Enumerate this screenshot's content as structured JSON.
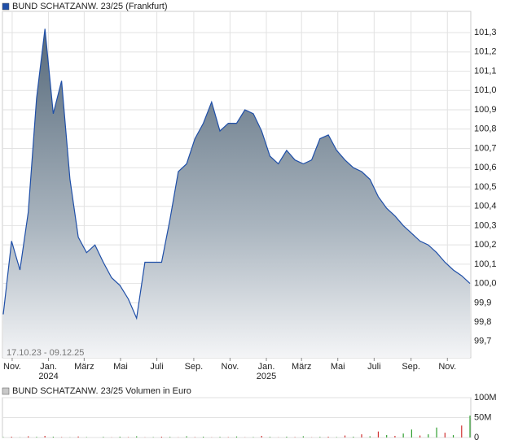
{
  "chart_data": [
    {
      "type": "area",
      "title": "BUND SCHATZANW. 23/25 (Frankfurt)",
      "legend_color": "#1f4fa8",
      "date_range": "17.10.23 - 09.12.25",
      "values": [
        99.84,
        100.22,
        100.07,
        100.37,
        100.96,
        101.32,
        100.88,
        101.05,
        100.54,
        100.24,
        100.16,
        100.2,
        100.11,
        100.03,
        99.99,
        99.92,
        99.82,
        100.11,
        100.11,
        100.11,
        100.33,
        100.58,
        100.62,
        100.75,
        100.83,
        100.94,
        100.79,
        100.83,
        100.83,
        100.9,
        100.88,
        100.79,
        100.66,
        100.62,
        100.69,
        100.64,
        100.62,
        100.64,
        100.75,
        100.77,
        100.69,
        100.64,
        100.6,
        100.58,
        100.54,
        100.45,
        100.39,
        100.35,
        100.3,
        100.26,
        100.22,
        100.2,
        100.16,
        100.11,
        100.07,
        100.04,
        100.0
      ],
      "color": "#1f4fa8",
      "grid": true,
      "xlim": [
        0,
        56
      ],
      "xticks": [
        {
          "value": 1.07,
          "label": "Nov."
        },
        {
          "value": 5.43,
          "label": "Jan.",
          "year": "2024"
        },
        {
          "value": 9.71,
          "label": "März"
        },
        {
          "value": 14.07,
          "label": "Mai"
        },
        {
          "value": 18.43,
          "label": "Juli"
        },
        {
          "value": 22.86,
          "label": "Sep."
        },
        {
          "value": 27.21,
          "label": "Nov."
        },
        {
          "value": 31.57,
          "label": "Jan.",
          "year": "2025"
        },
        {
          "value": 35.79,
          "label": "März"
        },
        {
          "value": 40.14,
          "label": "Mai"
        },
        {
          "value": 44.5,
          "label": "Juli"
        },
        {
          "value": 48.93,
          "label": "Sep."
        },
        {
          "value": 53.29,
          "label": "Nov."
        }
      ],
      "ylim": [
        99.615,
        101.41
      ],
      "yticks": [
        {
          "value": 99.7,
          "label": "99,7"
        },
        {
          "value": 99.8,
          "label": "99,8"
        },
        {
          "value": 99.9,
          "label": "99,9"
        },
        {
          "value": 100.0,
          "label": "100,0"
        },
        {
          "value": 100.1,
          "label": "100,1"
        },
        {
          "value": 100.2,
          "label": "100,2"
        },
        {
          "value": 100.3,
          "label": "100,3"
        },
        {
          "value": 100.4,
          "label": "100,4"
        },
        {
          "value": 100.5,
          "label": "100,5"
        },
        {
          "value": 100.6,
          "label": "100,6"
        },
        {
          "value": 100.7,
          "label": "100,7"
        },
        {
          "value": 100.8,
          "label": "100,8"
        },
        {
          "value": 100.9,
          "label": "100,9"
        },
        {
          "value": 101.0,
          "label": "101,0"
        },
        {
          "value": 101.1,
          "label": "101,1"
        },
        {
          "value": 101.2,
          "label": "101,2"
        },
        {
          "value": 101.3,
          "label": "101,3"
        }
      ]
    },
    {
      "type": "bar",
      "title": "BUND SCHATZANW. 23/25 Volumen in Euro",
      "legend_color": "#c8c8c8",
      "values": [
        1000000,
        2000000,
        500000,
        3000000,
        1500000,
        4000000,
        2000000,
        1000000,
        500000,
        2500000,
        1000000,
        0,
        1500000,
        500000,
        2000000,
        1000000,
        3000000,
        500000,
        1000000,
        2000000,
        1500000,
        500000,
        3000000,
        1000000,
        2000000,
        500000,
        1500000,
        1000000,
        2500000,
        500000,
        1000000,
        4000000,
        1500000,
        500000,
        2000000,
        1000000,
        3000000,
        500000,
        1500000,
        2000000,
        1000000,
        5000000,
        2000000,
        8000000,
        3000000,
        15000000,
        6000000,
        4000000,
        10000000,
        20000000,
        5000000,
        8000000,
        25000000,
        12000000,
        6000000,
        30000000,
        55000000
      ],
      "colors": [
        "#2e9e2e",
        "#d03030",
        "#2e9e2e",
        "#d03030",
        "#2e9e2e",
        "#d03030",
        "#2e9e2e",
        "#d03030",
        "#2e9e2e",
        "#d03030",
        "#2e9e2e",
        "#d03030",
        "#2e9e2e",
        "#d03030",
        "#2e9e2e",
        "#d03030",
        "#2e9e2e",
        "#d03030",
        "#2e9e2e",
        "#d03030",
        "#2e9e2e",
        "#d03030",
        "#2e9e2e",
        "#d03030",
        "#2e9e2e",
        "#d03030",
        "#2e9e2e",
        "#d03030",
        "#2e9e2e",
        "#d03030",
        "#2e9e2e",
        "#d03030",
        "#2e9e2e",
        "#d03030",
        "#2e9e2e",
        "#d03030",
        "#2e9e2e",
        "#d03030",
        "#2e9e2e",
        "#d03030",
        "#2e9e2e",
        "#d03030",
        "#2e9e2e",
        "#d03030",
        "#2e9e2e",
        "#d03030",
        "#2e9e2e",
        "#d03030",
        "#2e9e2e",
        "#2e9e2e",
        "#d03030",
        "#2e9e2e",
        "#2e9e2e",
        "#d03030",
        "#2e9e2e",
        "#d03030",
        "#2e9e2e"
      ],
      "ylim": [
        0,
        100000000
      ],
      "yticks": [
        0,
        {
          "value": 50000000,
          "label": "50M"
        },
        {
          "value": 100000000,
          "label": "100M"
        }
      ]
    }
  ]
}
